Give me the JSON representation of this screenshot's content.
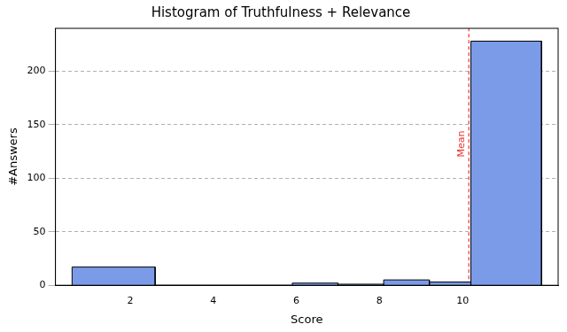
{
  "chart_data": {
    "type": "histogram",
    "title": "Histogram of Truthfulness + Relevance",
    "x_label": "Score",
    "y_label": "#Answers",
    "bins": [
      0.6,
      2.6,
      3.7,
      4.8,
      5.9,
      7.0,
      8.1,
      9.2,
      10.2,
      11.9
    ],
    "values": [
      17,
      0,
      0,
      0,
      2,
      1,
      5,
      3,
      228
    ],
    "color": "#7b9be8",
    "xlim": [
      0.2,
      12.3
    ],
    "xticks": [
      2,
      4,
      6,
      8,
      10
    ],
    "ylim": [
      0,
      240
    ],
    "yticks": [
      0,
      50,
      100,
      150,
      200
    ],
    "grid": "y",
    "annotations": [
      {
        "text": "Mean",
        "x": 10.15,
        "color": "#e8312f",
        "line_style": "dashed"
      }
    ]
  }
}
